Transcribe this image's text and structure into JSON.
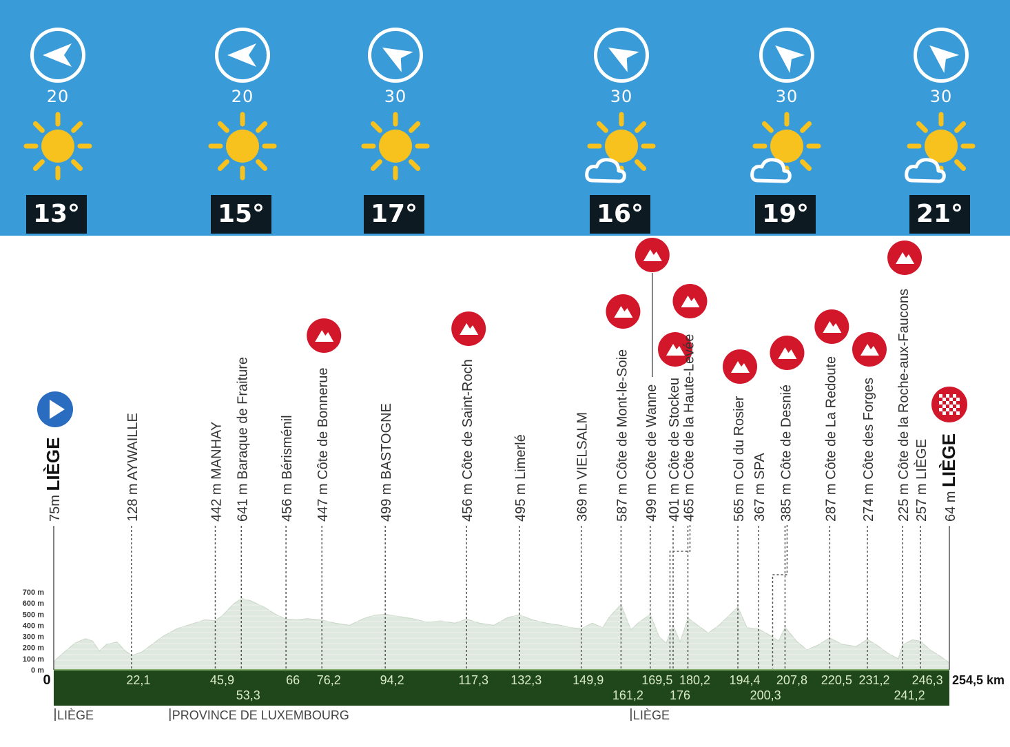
{
  "weather": [
    {
      "wind": "20",
      "wind_dir": 180,
      "temp": "13°",
      "icon": "sun-icon"
    },
    {
      "wind": "20",
      "wind_dir": 180,
      "temp": "15°",
      "icon": "sun-icon"
    },
    {
      "wind": "30",
      "wind_dir": 210,
      "temp": "17°",
      "icon": "sun-icon"
    },
    {
      "wind": "30",
      "wind_dir": 210,
      "temp": "16°",
      "icon": "sun-cloud-icon"
    },
    {
      "wind": "30",
      "wind_dir": 220,
      "temp": "19°",
      "icon": "sun-cloud-icon"
    },
    {
      "wind": "30",
      "wind_dir": 220,
      "temp": "21°",
      "icon": "sun-cloud-icon"
    }
  ],
  "colors": {
    "sky": "#3a9bd9",
    "temp_box": "#0e1a22",
    "sun": "#f7c21d",
    "climb": "#d3172b",
    "start": "#2a6cc0",
    "base": "#20471c",
    "profile": "#dfe8de"
  },
  "chart_data": {
    "type": "area",
    "title": "",
    "xlabel": "",
    "ylabel": "",
    "total_distance": "254,5 km",
    "y_ticks": [
      "700 m",
      "600 m",
      "500 m",
      "400 m",
      "300 m",
      "200 m",
      "100 m",
      "0 m"
    ],
    "ylim": [
      0,
      700
    ],
    "xlim": [
      0,
      254.5
    ],
    "km_labels": [
      {
        "km": 0,
        "text": "0"
      },
      {
        "km": 22.1,
        "text": "22,1"
      },
      {
        "km": 45.9,
        "text": "45,9"
      },
      {
        "km": 53.3,
        "text": "53,3"
      },
      {
        "km": 66,
        "text": "66"
      },
      {
        "km": 76.2,
        "text": "76,2"
      },
      {
        "km": 94.2,
        "text": "94,2"
      },
      {
        "km": 117.3,
        "text": "117,3"
      },
      {
        "km": 132.3,
        "text": "132,3"
      },
      {
        "km": 149.9,
        "text": "149,9"
      },
      {
        "km": 161.2,
        "text": "161,2"
      },
      {
        "km": 169.5,
        "text": "169,5"
      },
      {
        "km": 176,
        "text": "176"
      },
      {
        "km": 180.2,
        "text": "180,2"
      },
      {
        "km": 194.4,
        "text": "194,4"
      },
      {
        "km": 200.3,
        "text": "200,3"
      },
      {
        "km": 207.8,
        "text": "207,8"
      },
      {
        "km": 220.5,
        "text": "220,5"
      },
      {
        "km": 231.2,
        "text": "231,2"
      },
      {
        "km": 241.2,
        "text": "241,2"
      },
      {
        "km": 246.3,
        "text": "246,3"
      }
    ],
    "waypoints": [
      {
        "km": 0,
        "alt": "75m",
        "name": "LIÈGE",
        "bold": true,
        "type": "start"
      },
      {
        "km": 22.1,
        "alt": "128 m",
        "name": "AYWAILLE"
      },
      {
        "km": 45.9,
        "alt": "442 m",
        "name": "MANHAY"
      },
      {
        "km": 53.3,
        "alt": "641 m",
        "name": "Baraque de Fraiture"
      },
      {
        "km": 66,
        "alt": "456 m",
        "name": "Bérisménil"
      },
      {
        "km": 76.2,
        "alt": "447 m",
        "name": "Côte de Bonnerue",
        "type": "climb"
      },
      {
        "km": 94.2,
        "alt": "499 m",
        "name": "BASTOGNE"
      },
      {
        "km": 117.3,
        "alt": "456 m",
        "name": "Côte de Saint-Roch",
        "type": "climb"
      },
      {
        "km": 132.3,
        "alt": "495 m",
        "name": "Limerlé"
      },
      {
        "km": 149.9,
        "alt": "369 m",
        "name": "VIELSALM"
      },
      {
        "km": 161.2,
        "alt": "587 m",
        "name": "Côte de Mont-le-Soie",
        "type": "climb"
      },
      {
        "km": 169.5,
        "alt": "499 m",
        "name": "Côte de Wanne",
        "type": "climb"
      },
      {
        "km": 176,
        "alt": "401 m",
        "name": "Côte de Stockeu",
        "type": "climb"
      },
      {
        "km": 180.2,
        "alt": "465 m",
        "name": "Côte de la Haute-Levée",
        "type": "climb"
      },
      {
        "km": 194.4,
        "alt": "565 m",
        "name": "Col du Rosier",
        "type": "climb"
      },
      {
        "km": 200.3,
        "alt": "367 m",
        "name": "SPA"
      },
      {
        "km": 207.8,
        "alt": "385 m",
        "name": "Côte de Desnié",
        "type": "climb"
      },
      {
        "km": 220.5,
        "alt": "287 m",
        "name": "Côte de La Redoute",
        "type": "climb"
      },
      {
        "km": 231.2,
        "alt": "274 m",
        "name": "Côte des Forges",
        "type": "climb"
      },
      {
        "km": 241.2,
        "alt": "225 m",
        "name": "Côte de la Roche-aux-Faucons",
        "type": "climb"
      },
      {
        "km": 246.3,
        "alt": "257 m",
        "name": "LIÈGE"
      },
      {
        "km": 254.5,
        "alt": "64 m",
        "name": "LIÈGE",
        "bold": true,
        "type": "finish"
      }
    ],
    "regions": [
      {
        "km": 0,
        "text": "LIÈGE"
      },
      {
        "km": 35,
        "text": "PROVINCE DE LUXEMBOURG"
      },
      {
        "km": 166,
        "text": "LIÈGE"
      }
    ],
    "elevation": [
      [
        0,
        75
      ],
      [
        3,
        160
      ],
      [
        6,
        240
      ],
      [
        9,
        280
      ],
      [
        11,
        260
      ],
      [
        13,
        170
      ],
      [
        15,
        230
      ],
      [
        18,
        250
      ],
      [
        20,
        180
      ],
      [
        22.1,
        128
      ],
      [
        25,
        160
      ],
      [
        28,
        230
      ],
      [
        31,
        300
      ],
      [
        35,
        370
      ],
      [
        40,
        420
      ],
      [
        43,
        450
      ],
      [
        45.9,
        442
      ],
      [
        48,
        490
      ],
      [
        51,
        590
      ],
      [
        53.3,
        641
      ],
      [
        56,
        620
      ],
      [
        60,
        560
      ],
      [
        63,
        500
      ],
      [
        66,
        456
      ],
      [
        69,
        450
      ],
      [
        72,
        460
      ],
      [
        76.2,
        447
      ],
      [
        80,
        420
      ],
      [
        84,
        400
      ],
      [
        88,
        460
      ],
      [
        91,
        490
      ],
      [
        94.2,
        499
      ],
      [
        98,
        480
      ],
      [
        102,
        460
      ],
      [
        106,
        430
      ],
      [
        110,
        440
      ],
      [
        114,
        420
      ],
      [
        117.3,
        456
      ],
      [
        121,
        420
      ],
      [
        125,
        400
      ],
      [
        129,
        470
      ],
      [
        132.3,
        495
      ],
      [
        136,
        450
      ],
      [
        140,
        420
      ],
      [
        144,
        400
      ],
      [
        147,
        380
      ],
      [
        149.9,
        369
      ],
      [
        153,
        420
      ],
      [
        156,
        380
      ],
      [
        158,
        480
      ],
      [
        161.2,
        587
      ],
      [
        164,
        360
      ],
      [
        166,
        420
      ],
      [
        169.5,
        499
      ],
      [
        172,
        300
      ],
      [
        174,
        240
      ],
      [
        176,
        401
      ],
      [
        178,
        250
      ],
      [
        180.2,
        465
      ],
      [
        183,
        400
      ],
      [
        186,
        330
      ],
      [
        189,
        400
      ],
      [
        191,
        460
      ],
      [
        194.4,
        565
      ],
      [
        197,
        380
      ],
      [
        200.3,
        367
      ],
      [
        203,
        320
      ],
      [
        206,
        260
      ],
      [
        207.8,
        385
      ],
      [
        211,
        260
      ],
      [
        214,
        180
      ],
      [
        217,
        220
      ],
      [
        220.5,
        287
      ],
      [
        224,
        230
      ],
      [
        228,
        210
      ],
      [
        231.2,
        274
      ],
      [
        234,
        220
      ],
      [
        237,
        150
      ],
      [
        240,
        100
      ],
      [
        241.2,
        225
      ],
      [
        244,
        270
      ],
      [
        246.3,
        257
      ],
      [
        249,
        180
      ],
      [
        252,
        120
      ],
      [
        254.5,
        64
      ]
    ]
  }
}
